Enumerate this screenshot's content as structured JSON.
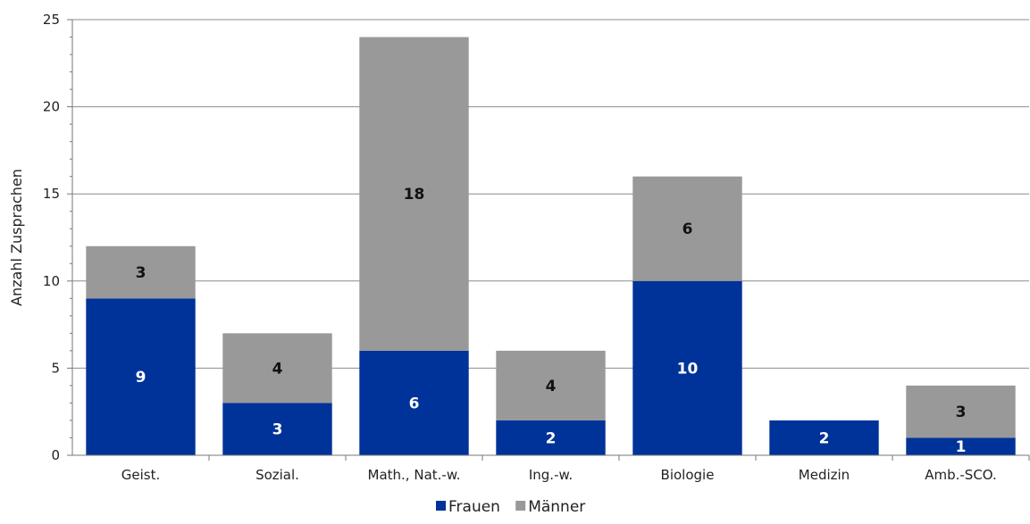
{
  "chart_data": {
    "type": "bar",
    "stacked": true,
    "ylabel": "Anzahl Zusprachen",
    "ylim": [
      0,
      25
    ],
    "yticks": [
      "0",
      "5",
      "10",
      "15",
      "20",
      "25"
    ],
    "grid": true,
    "legend_position": "bottom",
    "categories": [
      "Geist.",
      "Sozial.",
      "Math., Nat.-w.",
      "Ing.-w.",
      "Biologie",
      "Medizin",
      "Amb.-SCO."
    ],
    "series": [
      {
        "name": "Frauen",
        "color": "#003399",
        "label_color": "#ffffff",
        "values": [
          9,
          3,
          6,
          2,
          10,
          2,
          1
        ]
      },
      {
        "name": "Männer",
        "color": "#999999",
        "label_color": "#111111",
        "values": [
          3,
          4,
          18,
          4,
          6,
          0,
          3
        ]
      }
    ]
  }
}
